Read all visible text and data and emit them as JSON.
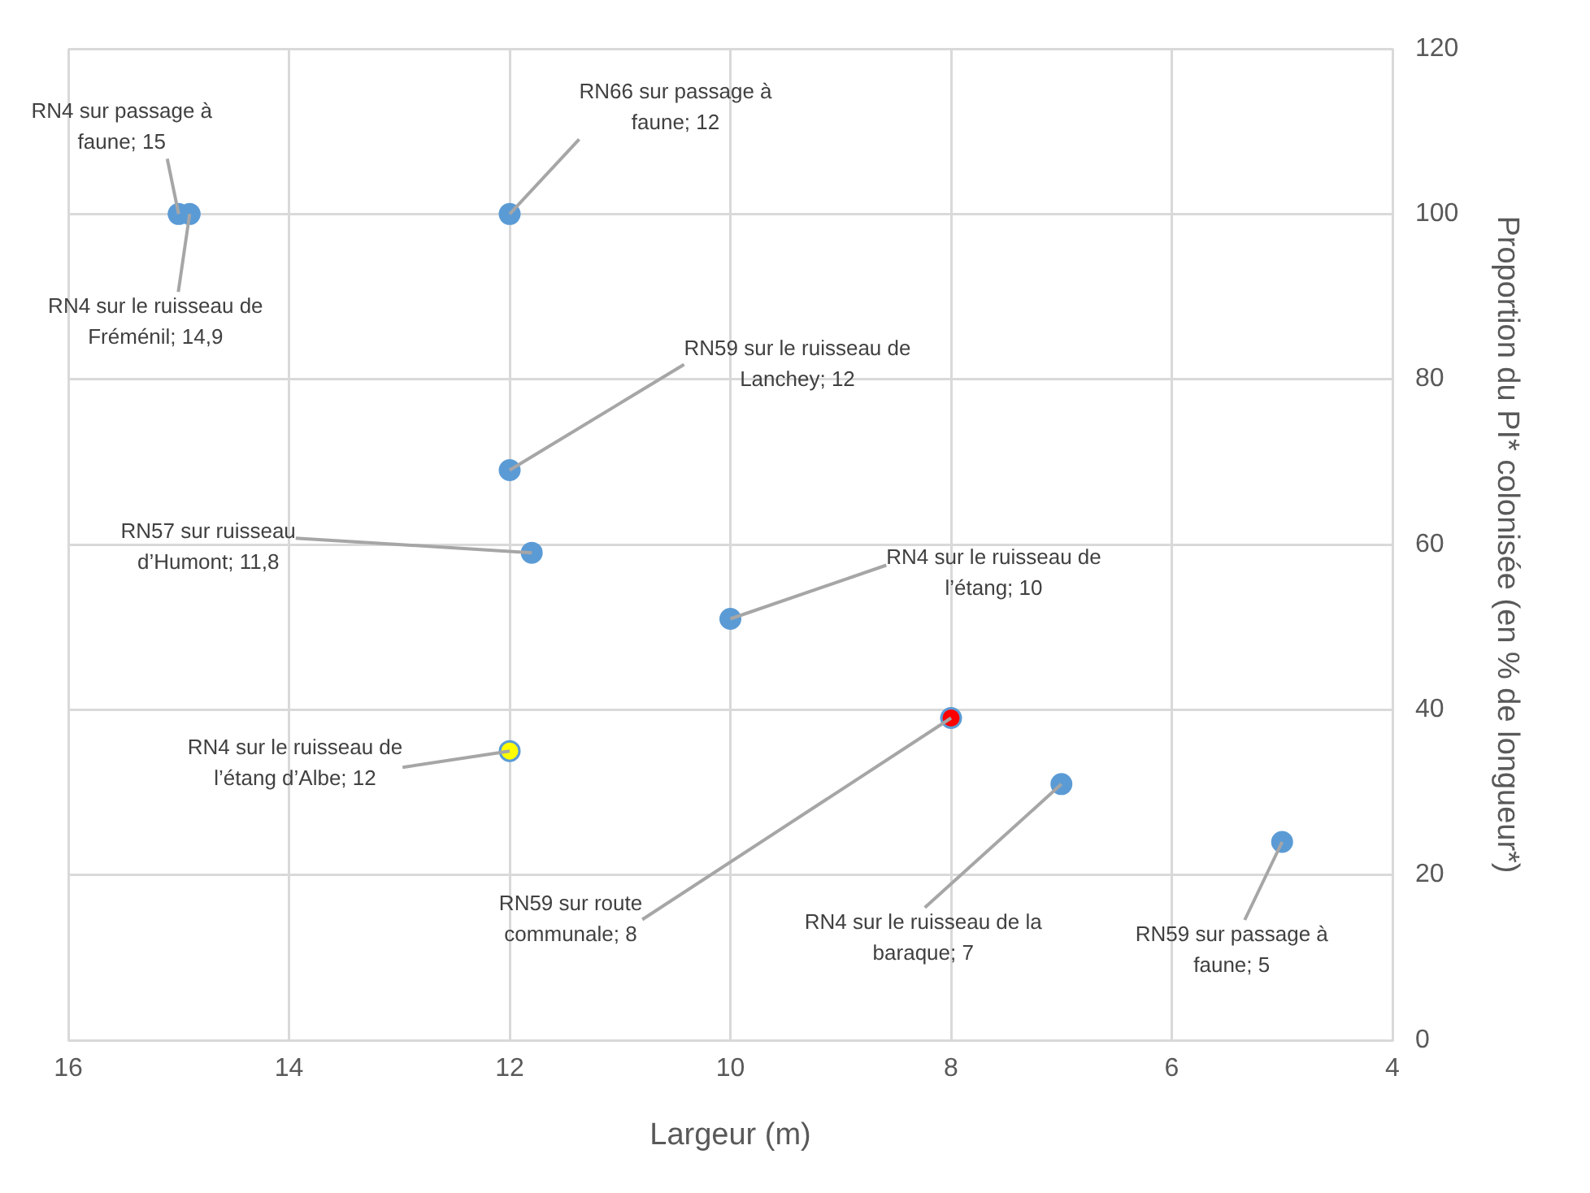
{
  "chart_data": {
    "type": "scatter",
    "xlabel": "Largeur (m)",
    "ylabel": "Proportion du PI* colonisée (en % de longueur*)",
    "xlim": [
      16,
      4
    ],
    "xticks": [
      16,
      14,
      12,
      10,
      8,
      6,
      4
    ],
    "ylim": [
      0,
      120
    ],
    "yticks": [
      0,
      20,
      40,
      60,
      80,
      100,
      120
    ],
    "grid": true,
    "legend": false,
    "marker": "circle",
    "series": [
      {
        "color": "#5b9bd5",
        "x": [
          15,
          14.9,
          12,
          12,
          11.8,
          10,
          12,
          8,
          7,
          5
        ],
        "values": [
          100,
          100,
          100,
          69,
          59,
          51,
          35,
          39,
          31,
          24
        ],
        "colors": [
          "#5b9bd5",
          "#5b9bd5",
          "#5b9bd5",
          "#5b9bd5",
          "#5b9bd5",
          "#5b9bd5",
          "#ffff00",
          "#ff0000",
          "#5b9bd5",
          "#5b9bd5"
        ]
      }
    ],
    "annotations": [
      {
        "text": "RN4 sur passage à faune; 15",
        "x": 15,
        "y": 100
      },
      {
        "text": "RN4 sur le ruisseau de Fréménil; 14,9",
        "x": 14.9,
        "y": 100
      },
      {
        "text": "RN66 sur passage à faune; 12",
        "x": 12,
        "y": 100
      },
      {
        "text": "RN59 sur le ruisseau de Lanchey; 12",
        "x": 12,
        "y": 69
      },
      {
        "text": "RN57 sur ruisseau d’Humont; 11,8",
        "x": 11.8,
        "y": 59
      },
      {
        "text": "RN4 sur le ruisseau de l’étang; 10",
        "x": 10,
        "y": 51
      },
      {
        "text": "RN4 sur le ruisseau de l’étang d’Albe; 12",
        "x": 12,
        "y": 35
      },
      {
        "text": "RN59 sur route communale; 8",
        "x": 8,
        "y": 39
      },
      {
        "text": "RN4 sur le ruisseau de la baraque; 7",
        "x": 7,
        "y": 31
      },
      {
        "text": "RN59 sur passage à faune; 5",
        "x": 5,
        "y": 24
      }
    ]
  }
}
